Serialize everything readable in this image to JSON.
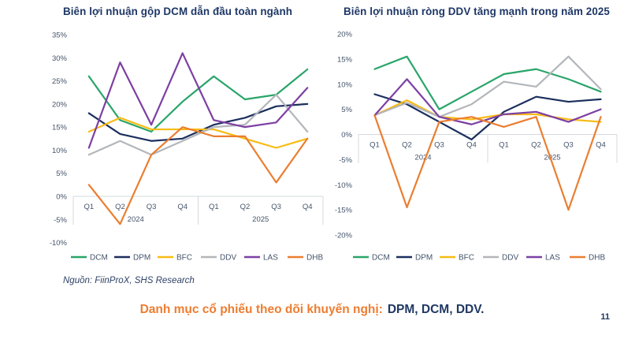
{
  "chart_data": [
    {
      "type": "line",
      "title": "Biên lợi nhuận gộp DCM dẫn đầu toàn ngành",
      "unit": "%",
      "ylim": [
        -10,
        35
      ],
      "ytick_step": 5,
      "grid": false,
      "legend_position": "bottom",
      "categories": [
        "Q1",
        "Q2",
        "Q3",
        "Q4",
        "Q1",
        "Q2",
        "Q3",
        "Q4"
      ],
      "year_groups": [
        {
          "label": "2024",
          "count": 4
        },
        {
          "label": "2025",
          "count": 4
        }
      ],
      "series": [
        {
          "name": "DCM",
          "color": "#29a569",
          "values": [
            26,
            16.5,
            14,
            20.5,
            26,
            21,
            22,
            27.5
          ]
        },
        {
          "name": "DPM",
          "color": "#1b2f5e",
          "values": [
            18,
            13.5,
            12,
            12.5,
            15.5,
            17,
            19.5,
            20
          ]
        },
        {
          "name": "BFC",
          "color": "#f7bc15",
          "values": [
            14,
            17,
            14.5,
            14.5,
            14.5,
            12.5,
            10.5,
            12.5
          ]
        },
        {
          "name": "DDV",
          "color": "#b3b6ba",
          "values": [
            9,
            12,
            9,
            12,
            15,
            15.5,
            22,
            14
          ]
        },
        {
          "name": "LAS",
          "color": "#7d3fa3",
          "values": [
            10.5,
            29,
            15.5,
            31,
            16.5,
            15,
            16,
            23.5
          ]
        },
        {
          "name": "DHB",
          "color": "#ea7e30",
          "values": [
            2.5,
            -6,
            9,
            15,
            13,
            13,
            3,
            12.5
          ]
        }
      ]
    },
    {
      "type": "line",
      "title": "Biên lợi nhuận ròng DDV tăng mạnh trong năm 2025",
      "unit": "%",
      "ylim": [
        -20,
        20
      ],
      "ytick_step": 5,
      "grid": false,
      "legend_position": "bottom",
      "categories": [
        "Q1",
        "Q2",
        "Q3",
        "Q4",
        "Q1",
        "Q2",
        "Q3",
        "Q4"
      ],
      "year_groups": [
        {
          "label": "2024",
          "count": 4
        },
        {
          "label": "2025",
          "count": 4
        }
      ],
      "series": [
        {
          "name": "DCM",
          "color": "#29a569",
          "values": [
            13,
            15.5,
            5,
            8.5,
            12,
            13,
            11,
            8.5
          ]
        },
        {
          "name": "DPM",
          "color": "#1b2f5e",
          "values": [
            8,
            6,
            2.5,
            -1,
            4.5,
            7.5,
            6.5,
            7
          ]
        },
        {
          "name": "BFC",
          "color": "#f7bc15",
          "values": [
            3.8,
            6.8,
            3.5,
            3,
            4,
            4,
            3,
            2.5
          ]
        },
        {
          "name": "DDV",
          "color": "#b3b6ba",
          "values": [
            3.8,
            6.3,
            3.5,
            6,
            10.5,
            9.5,
            15.5,
            9
          ]
        },
        {
          "name": "LAS",
          "color": "#7d3fa3",
          "values": [
            3.8,
            11,
            3.5,
            2,
            4,
            4.5,
            2.5,
            5
          ]
        },
        {
          "name": "DHB",
          "color": "#ea7e30",
          "values": [
            3.8,
            -14.5,
            2.5,
            3.5,
            1.5,
            3.5,
            -15,
            3.5
          ]
        }
      ]
    }
  ],
  "footer": {
    "source_note": "Nguồn: FiinProX, SHS Research",
    "recommendation_label": "Danh mục cổ phiếu theo dõi khuyến nghị:",
    "recommendation_tickers": "DPM, DCM, DDV.",
    "page_number": "11"
  },
  "colors": {
    "title": "#1e3766",
    "axis_text": "#44546a",
    "axis_line": "#d5d9de",
    "accent_orange": "#ed7d31",
    "ticker_navy": "#1f3864"
  }
}
